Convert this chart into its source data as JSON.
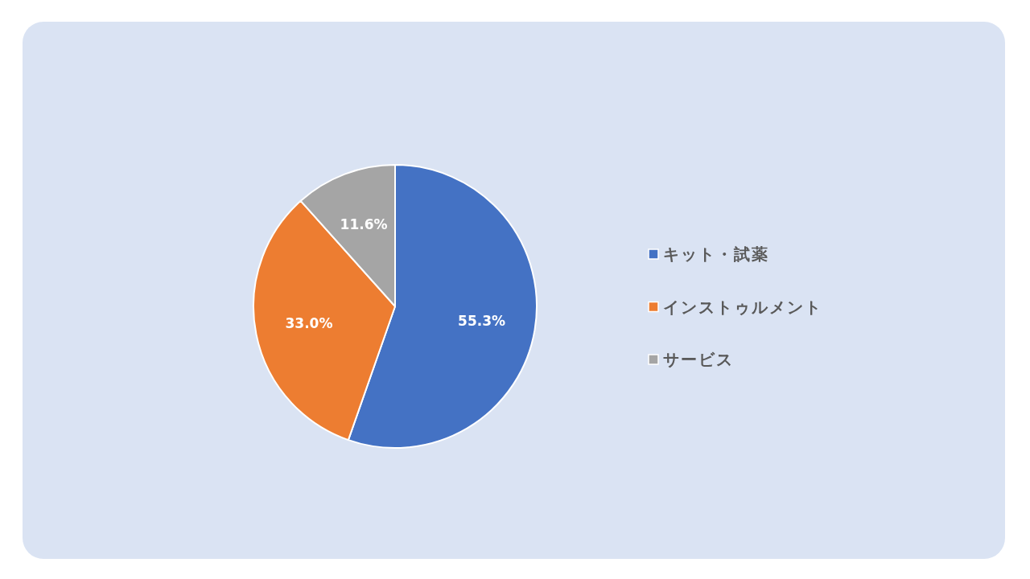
{
  "chart_data": {
    "type": "pie",
    "categories": [
      "キット・試薬",
      "インストゥルメント",
      "サービス"
    ],
    "values": [
      55.3,
      33.0,
      11.6
    ],
    "colors": [
      "#4472c4",
      "#ed7d31",
      "#a5a5a5"
    ],
    "value_labels": [
      "55.3%",
      "33.0%",
      "11.6%"
    ],
    "legend": "right"
  }
}
